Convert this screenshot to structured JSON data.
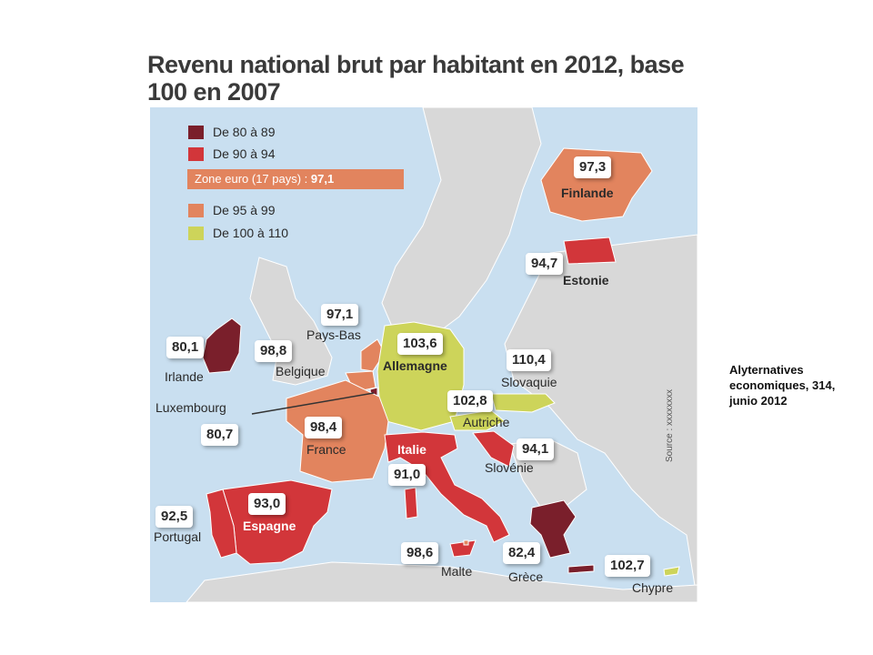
{
  "title": "Revenu national brut par habitant en 2012, base 100 en 2007",
  "legend": [
    {
      "label": "De 80 à 89",
      "color": "#7a1f2b"
    },
    {
      "label": "De 90 à 94",
      "color": "#d2363a"
    },
    {
      "label": "De 95 à 99",
      "color": "#e2845e"
    },
    {
      "label": "De 100 à 110",
      "color": "#cdd45a"
    }
  ],
  "zone_euro": {
    "text": "Zone euro (17 pays) : ",
    "value": "97,1"
  },
  "countries": {
    "finlande": {
      "name": "Finlande",
      "value": "97,3"
    },
    "estonie": {
      "name": "Estonie",
      "value": "94,7"
    },
    "pays_bas": {
      "name": "Pays-Bas",
      "value": "97,1"
    },
    "irlande": {
      "name": "Irlande",
      "value": "80,1"
    },
    "belgique": {
      "name": "Belgique",
      "value": "98,8"
    },
    "allemagne": {
      "name": "Allemagne",
      "value": "103,6"
    },
    "slovaquie": {
      "name": "Slovaquie",
      "value": "110,4"
    },
    "luxembourg": {
      "name": "Luxembourg",
      "value": "80,7"
    },
    "autriche": {
      "name": "Autriche",
      "value": "102,8"
    },
    "france": {
      "name": "France",
      "value": "98,4"
    },
    "italie": {
      "name": "Italie",
      "value": "91,0"
    },
    "slovenie": {
      "name": "Slovénie",
      "value": "94,1"
    },
    "portugal": {
      "name": "Portugal",
      "value": "92,5"
    },
    "espagne": {
      "name": "Espagne",
      "value": "93,0"
    },
    "malte": {
      "name": "Malte",
      "value": "98,6"
    },
    "grece": {
      "name": "Grèce",
      "value": "82,4"
    },
    "chypre": {
      "name": "Chypre",
      "value": "102,7"
    }
  },
  "source": "Source : xxxxxxxx",
  "note": "Alyternatives economiques, 314, junio 2012",
  "colors": {
    "sea": "#c9dff0",
    "land": "#d8d8d8",
    "border": "#ffffff"
  }
}
